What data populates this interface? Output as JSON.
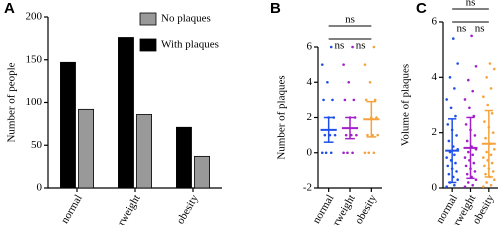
{
  "chart_data": [
    {
      "type": "bar",
      "label": "A",
      "ylabel": "Number of people",
      "categories": [
        "normal",
        "overweight",
        "obesity"
      ],
      "series": [
        {
          "name": "With plaques",
          "color": "#000000",
          "values": [
            147,
            176,
            71
          ]
        },
        {
          "name": "No plaques",
          "color": "#999999",
          "values": [
            92,
            86,
            37
          ]
        }
      ],
      "ylim": [
        0,
        200
      ],
      "yticks": [
        0,
        50,
        100,
        150,
        200
      ],
      "legend": "top-right"
    },
    {
      "type": "dot",
      "label": "B",
      "ylabel": "Number of plaques",
      "categories": [
        "normal",
        "overweight",
        "obesity"
      ],
      "groups": [
        {
          "color": "#1f4fe8",
          "points": [
            0,
            0,
            0,
            1,
            1,
            1,
            2,
            2,
            3,
            3,
            4,
            5,
            6
          ],
          "mean": 1.3,
          "sd": 0.7
        },
        {
          "color": "#a21fc9",
          "points": [
            0,
            0,
            0,
            1,
            1,
            1,
            2,
            2,
            3,
            3,
            4,
            5,
            6
          ],
          "mean": 1.4,
          "sd": 0.6
        },
        {
          "color": "#f5a23a",
          "points": [
            0,
            0,
            0,
            1,
            1,
            1,
            2,
            2,
            3,
            3,
            4,
            5,
            6
          ],
          "mean": 1.9,
          "sd": 1.0
        }
      ],
      "comparisons": [
        {
          "between": [
            0,
            1
          ],
          "label": "ns"
        },
        {
          "between": [
            1,
            2
          ],
          "label": "ns"
        },
        {
          "between": [
            0,
            2
          ],
          "label": "ns"
        }
      ],
      "ylim": [
        -2,
        6
      ],
      "yticks": [
        -2,
        0,
        2,
        4,
        6
      ]
    },
    {
      "type": "dot",
      "label": "C",
      "ylabel": "Volume of plaques",
      "categories": [
        "normal",
        "overweight",
        "obesity"
      ],
      "groups": [
        {
          "color": "#1f4fe8",
          "points": [
            0.05,
            0.1,
            0.2,
            0.3,
            0.4,
            0.5,
            0.6,
            0.7,
            0.8,
            0.9,
            1.0,
            1.1,
            1.2,
            1.3,
            1.4,
            1.5,
            1.7,
            1.9,
            2.1,
            2.3,
            2.6,
            2.9,
            3.2,
            3.6,
            4.0,
            4.5,
            5.4
          ],
          "mean": 1.35,
          "sd": 1.15
        },
        {
          "color": "#a21fc9",
          "points": [
            0.05,
            0.1,
            0.2,
            0.3,
            0.4,
            0.5,
            0.6,
            0.7,
            0.8,
            0.9,
            1.0,
            1.1,
            1.2,
            1.3,
            1.4,
            1.5,
            1.7,
            1.9,
            2.1,
            2.3,
            2.6,
            2.9,
            3.2,
            3.5,
            3.9,
            4.4,
            5.5
          ],
          "mean": 1.45,
          "sd": 1.1
        },
        {
          "color": "#f5a23a",
          "points": [
            0.05,
            0.1,
            0.2,
            0.3,
            0.4,
            0.5,
            0.6,
            0.7,
            0.8,
            0.9,
            1.0,
            1.1,
            1.2,
            1.3,
            1.4,
            1.6,
            1.8,
            2.0,
            2.2,
            2.4,
            2.7,
            3.0,
            3.3,
            3.6,
            4.0,
            4.3,
            4.5
          ],
          "mean": 1.6,
          "sd": 1.2
        }
      ],
      "comparisons": [
        {
          "between": [
            0,
            1
          ],
          "label": "ns"
        },
        {
          "between": [
            1,
            2
          ],
          "label": "ns"
        },
        {
          "between": [
            0,
            2
          ],
          "label": "ns"
        }
      ],
      "ylim": [
        0,
        6
      ],
      "yticks": [
        0,
        2,
        4,
        6
      ]
    }
  ]
}
